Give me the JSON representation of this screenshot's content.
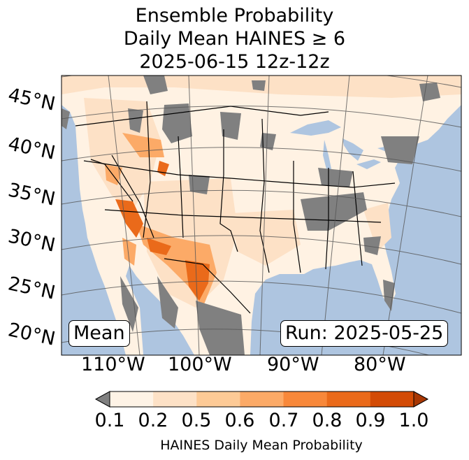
{
  "title": {
    "line1": "Ensemble Probability",
    "line2": "Daily Mean HAINES ≥ 6",
    "line3": "2025-06-15 12z-12z"
  },
  "map": {
    "lat_labels": [
      "45°N",
      "40°N",
      "35°N",
      "30°N",
      "25°N",
      "20°N"
    ],
    "lon_labels": [
      "110°W",
      "100°W",
      "90°W",
      "80°W"
    ],
    "stat_label": "Mean",
    "run_label": "Run: 2025-05-25",
    "colors": {
      "ocean": "#aec5e0",
      "no_data_grey": "#808080",
      "land_base": "#fff2e3"
    }
  },
  "colorbar": {
    "ticks": [
      "0.1",
      "0.2",
      "0.5",
      "0.6",
      "0.7",
      "0.8",
      "0.9",
      "1.0"
    ],
    "colors": [
      "#fef3e6",
      "#fde1c6",
      "#fdca96",
      "#fcaa67",
      "#f8883a",
      "#ea6a1a",
      "#d34b05",
      "#a83703"
    ],
    "under_color": "#808080",
    "label": "HAINES Daily Mean Probability"
  }
}
